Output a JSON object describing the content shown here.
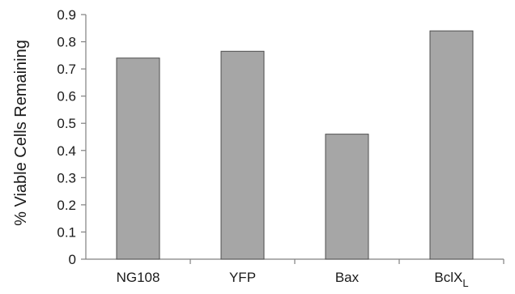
{
  "chart_data": {
    "type": "bar",
    "title": "",
    "xlabel": "",
    "ylabel": "% Viable Cells Remaining",
    "categories": [
      "NG108",
      "YFP",
      "Bax",
      "BclX"
    ],
    "category_subscripts": [
      "",
      "",
      "",
      "L"
    ],
    "values": [
      0.74,
      0.765,
      0.46,
      0.84
    ],
    "ylim": [
      0,
      0.9
    ],
    "yticks": [
      "0",
      "0.1",
      "0.2",
      "0.3",
      "0.4",
      "0.5",
      "0.6",
      "0.7",
      "0.8",
      "0.9"
    ],
    "grid": false,
    "legend": "none",
    "bar_color": "#a6a6a6",
    "bar_edge_color": "#4d4d4d",
    "axis_color": "#808080"
  }
}
